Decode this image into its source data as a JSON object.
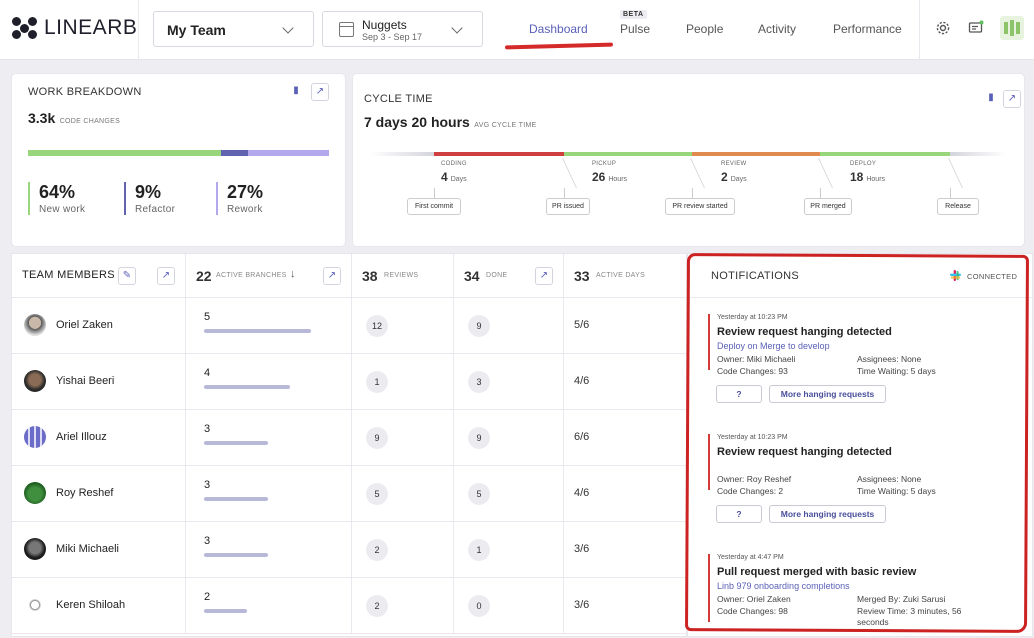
{
  "app": {
    "logo_text": "LINEARB"
  },
  "header": {
    "team_select": "My Team",
    "date_select": {
      "title": "Nuggets",
      "range": "Sep 3 - Sep 17"
    },
    "nav": [
      {
        "label": "Dashboard",
        "active": true
      },
      {
        "label": "Pulse",
        "badge": "BETA"
      },
      {
        "label": "People"
      },
      {
        "label": "Activity"
      },
      {
        "label": "Performance"
      }
    ],
    "icons": [
      "gear-icon",
      "feedback-icon",
      "avatar-icon"
    ]
  },
  "work_breakdown": {
    "title": "WORK BREAKDOWN",
    "total": "3.3k",
    "total_label": "CODE CHANGES",
    "segments": [
      {
        "value": "64%",
        "label": "New work",
        "color": "#98d67b",
        "fraction": 0.64
      },
      {
        "value": "9%",
        "label": "Refactor",
        "color": "#6064b0",
        "fraction": 0.09
      },
      {
        "value": "27%",
        "label": "Rework",
        "color": "#b3a8ec",
        "fraction": 0.27
      }
    ]
  },
  "cycle_time": {
    "title": "CYCLE TIME",
    "total": "7 days 20 hours",
    "total_label": "AVG CYCLE TIME",
    "stages": [
      {
        "label": "CODING",
        "value": "4",
        "unit": "Days",
        "color": "#cf3f3f"
      },
      {
        "label": "PICKUP",
        "value": "26",
        "unit": "Hours",
        "color": "#98d67b"
      },
      {
        "label": "REVIEW",
        "value": "2",
        "unit": "Days",
        "color": "#e18a4f"
      },
      {
        "label": "DEPLOY",
        "value": "18",
        "unit": "Hours",
        "color": "#98d67b"
      }
    ],
    "milestones": [
      "First commit",
      "PR issued",
      "PR review started",
      "PR merged",
      "Release"
    ]
  },
  "team_table": {
    "headers": {
      "members": "TEAM MEMBERS",
      "branches_num": "22",
      "branches_label": "ACTIVE BRANCHES",
      "reviews_num": "38",
      "reviews_label": "REVIEWS",
      "done_num": "34",
      "done_label": "DONE",
      "days_num": "33",
      "days_label": "ACTIVE DAYS"
    },
    "rows": [
      {
        "name": "Oriel Zaken",
        "branches": "5",
        "reviews": "12",
        "done": "9",
        "days": "5/6",
        "bar": 0.72
      },
      {
        "name": "Yishai Beeri",
        "branches": "4",
        "reviews": "1",
        "done": "3",
        "days": "4/6",
        "bar": 0.58
      },
      {
        "name": "Ariel Illouz",
        "branches": "3",
        "reviews": "9",
        "done": "9",
        "days": "6/6",
        "bar": 0.43
      },
      {
        "name": "Roy Reshef",
        "branches": "3",
        "reviews": "5",
        "done": "5",
        "days": "4/6",
        "bar": 0.43
      },
      {
        "name": "Miki Michaeli",
        "branches": "3",
        "reviews": "2",
        "done": "1",
        "days": "3/6",
        "bar": 0.43
      },
      {
        "name": "Keren Shiloah",
        "branches": "2",
        "reviews": "2",
        "done": "0",
        "days": "3/6",
        "bar": 0.29
      }
    ]
  },
  "notifications": {
    "title": "NOTIFICATIONS",
    "status": "CONNECTED",
    "items": [
      {
        "time": "Yesterday at 10:23 PM",
        "title": "Review request hanging detected",
        "link": "Deploy on Merge to develop",
        "k1": "Owner: Miki Michaeli",
        "k2": "Code Changes: 93",
        "k3": "Assignees: None",
        "k4": "Time Waiting: 5 days",
        "btn1": "?",
        "btn2": "More hanging requests"
      },
      {
        "time": "Yesterday at 10:23 PM",
        "title": "Review request hanging detected",
        "link": "",
        "k1": "Owner: Roy Reshef",
        "k2": "Code Changes: 2",
        "k3": "Assignees: None",
        "k4": "Time Waiting: 5 days",
        "btn1": "?",
        "btn2": "More hanging requests"
      },
      {
        "time": "Yesterday at 4:47 PM",
        "title": "Pull request merged with basic review",
        "link": "Linb 979 onboarding completions",
        "k1": "Owner: Oriel Zaken",
        "k2": "Code Changes: 98",
        "k3": "Merged By: Zuki Sarusi",
        "k4": "Review Time: 3 minutes, 56 seconds"
      }
    ]
  }
}
